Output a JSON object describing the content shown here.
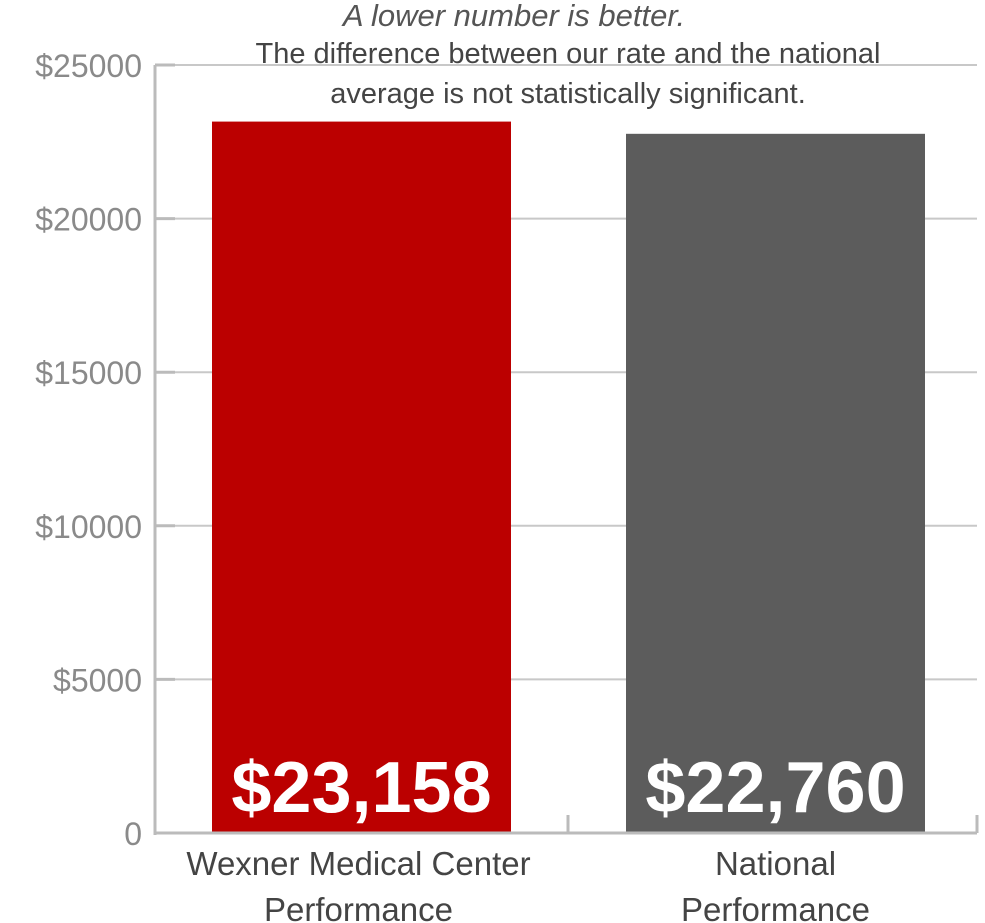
{
  "chart_data": {
    "type": "bar",
    "title": "A lower number is better.",
    "subtitle": [
      "The difference between our rate and the national",
      "average is not statistically significant."
    ],
    "categories": [
      [
        "Wexner Medical Center",
        "Performance"
      ],
      [
        "National",
        "Performance"
      ]
    ],
    "values": [
      23158,
      22760
    ],
    "value_labels": [
      "$23,158",
      "$22,760"
    ],
    "colors": [
      "#bb0000",
      "#5c5c5c"
    ],
    "ylim": [
      0,
      25000
    ],
    "yticks": [
      0,
      5000,
      10000,
      15000,
      20000,
      25000
    ],
    "ytick_labels": [
      "0",
      "$5000",
      "$10000",
      "$15000",
      "$20000",
      "$25000"
    ],
    "xlabel": "",
    "ylabel": "",
    "grid": true
  }
}
